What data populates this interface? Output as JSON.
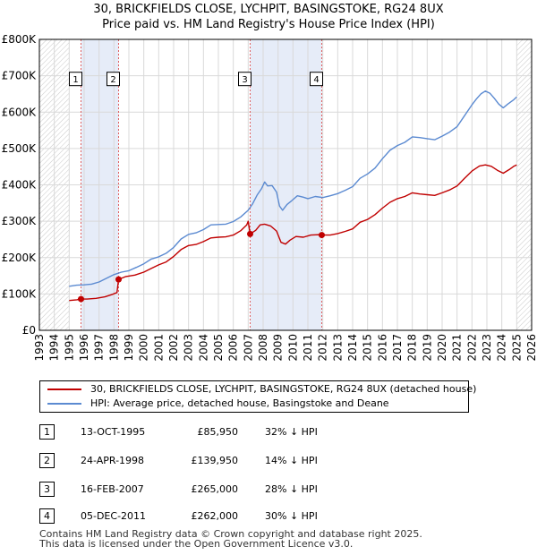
{
  "title_line1": "30, BRICKFIELDS CLOSE, LYCHPIT, BASINGSTOKE, RG24 8UX",
  "title_line2": "Price paid vs. HM Land Registry's House Price Index (HPI)",
  "chart_data": {
    "type": "line",
    "xlim": [
      1993,
      2026
    ],
    "ylim": [
      0,
      800000
    ],
    "x_ticks": [
      1993,
      1994,
      1995,
      1996,
      1997,
      1998,
      1999,
      2000,
      2001,
      2002,
      2003,
      2004,
      2005,
      2006,
      2007,
      2008,
      2009,
      2010,
      2011,
      2012,
      2013,
      2014,
      2015,
      2016,
      2017,
      2018,
      2019,
      2020,
      2021,
      2022,
      2023,
      2024,
      2025,
      2026
    ],
    "y_ticks": [
      {
        "value": 0,
        "label": "£0"
      },
      {
        "value": 100000,
        "label": "£100K"
      },
      {
        "value": 200000,
        "label": "£200K"
      },
      {
        "value": 300000,
        "label": "£300K"
      },
      {
        "value": 400000,
        "label": "£400K"
      },
      {
        "value": 500000,
        "label": "£500K"
      },
      {
        "value": 600000,
        "label": "£600K"
      },
      {
        "value": 700000,
        "label": "£700K"
      },
      {
        "value": 800000,
        "label": "£800K"
      }
    ],
    "grid": true,
    "shaded_ranges": [
      [
        1995.79,
        1998.31
      ],
      [
        2007.13,
        2011.93
      ]
    ],
    "hatched_ranges": [
      [
        1993,
        1995
      ],
      [
        2025,
        2026
      ]
    ],
    "series": [
      {
        "name": "HPI: Average price, detached house, Basingstoke and Deane",
        "color": "#5b8ad1",
        "points": [
          [
            1995.0,
            121000
          ],
          [
            1995.5,
            124000
          ],
          [
            1996.0,
            125000
          ],
          [
            1996.5,
            127000
          ],
          [
            1997.0,
            133000
          ],
          [
            1997.5,
            143000
          ],
          [
            1998.0,
            153000
          ],
          [
            1998.5,
            160000
          ],
          [
            1999.0,
            164000
          ],
          [
            1999.5,
            173000
          ],
          [
            2000.0,
            183000
          ],
          [
            2000.5,
            196000
          ],
          [
            2001.0,
            202000
          ],
          [
            2001.5,
            212000
          ],
          [
            2002.0,
            228000
          ],
          [
            2002.5,
            251000
          ],
          [
            2003.0,
            264000
          ],
          [
            2003.5,
            268000
          ],
          [
            2004.0,
            277000
          ],
          [
            2004.5,
            290000
          ],
          [
            2005.0,
            291000
          ],
          [
            2005.5,
            292000
          ],
          [
            2006.0,
            299000
          ],
          [
            2006.5,
            312000
          ],
          [
            2007.0,
            330000
          ],
          [
            2007.3,
            348000
          ],
          [
            2007.6,
            372000
          ],
          [
            2007.9,
            390000
          ],
          [
            2008.1,
            408000
          ],
          [
            2008.3,
            397000
          ],
          [
            2008.6,
            398000
          ],
          [
            2008.9,
            380000
          ],
          [
            2009.1,
            342000
          ],
          [
            2009.3,
            330000
          ],
          [
            2009.6,
            346000
          ],
          [
            2009.9,
            356000
          ],
          [
            2010.3,
            370000
          ],
          [
            2010.7,
            366000
          ],
          [
            2011.0,
            362000
          ],
          [
            2011.5,
            368000
          ],
          [
            2012.0,
            365000
          ],
          [
            2012.5,
            370000
          ],
          [
            2013.0,
            376000
          ],
          [
            2013.5,
            385000
          ],
          [
            2014.0,
            395000
          ],
          [
            2014.5,
            418000
          ],
          [
            2015.0,
            430000
          ],
          [
            2015.5,
            446000
          ],
          [
            2016.0,
            472000
          ],
          [
            2016.5,
            495000
          ],
          [
            2017.0,
            508000
          ],
          [
            2017.5,
            517000
          ],
          [
            2018.0,
            532000
          ],
          [
            2018.5,
            530000
          ],
          [
            2019.0,
            527000
          ],
          [
            2019.5,
            524000
          ],
          [
            2020.0,
            534000
          ],
          [
            2020.5,
            545000
          ],
          [
            2021.0,
            560000
          ],
          [
            2021.5,
            590000
          ],
          [
            2022.0,
            620000
          ],
          [
            2022.3,
            636000
          ],
          [
            2022.6,
            650000
          ],
          [
            2022.9,
            658000
          ],
          [
            2023.2,
            652000
          ],
          [
            2023.5,
            638000
          ],
          [
            2023.8,
            622000
          ],
          [
            2024.1,
            612000
          ],
          [
            2024.4,
            622000
          ],
          [
            2024.8,
            634000
          ],
          [
            2025.0,
            642000
          ]
        ]
      },
      {
        "name": "30, BRICKFIELDS CLOSE, LYCHPIT, BASINGSTOKE, RG24 8UX (detached house)",
        "color": "#c00000",
        "points": [
          [
            1995.0,
            82000
          ],
          [
            1995.5,
            84000
          ],
          [
            1995.79,
            85950
          ],
          [
            1996.2,
            86000
          ],
          [
            1996.8,
            88000
          ],
          [
            1997.4,
            92000
          ],
          [
            1997.9,
            99000
          ],
          [
            1998.2,
            104000
          ],
          [
            1998.31,
            139950
          ],
          [
            1998.8,
            148000
          ],
          [
            1999.4,
            152000
          ],
          [
            2000.0,
            160000
          ],
          [
            2000.5,
            170000
          ],
          [
            2001.0,
            180000
          ],
          [
            2001.5,
            188000
          ],
          [
            2002.0,
            203000
          ],
          [
            2002.5,
            222000
          ],
          [
            2003.0,
            233000
          ],
          [
            2003.5,
            236000
          ],
          [
            2004.0,
            244000
          ],
          [
            2004.5,
            254000
          ],
          [
            2005.0,
            256000
          ],
          [
            2005.5,
            257000
          ],
          [
            2006.0,
            262000
          ],
          [
            2006.5,
            274000
          ],
          [
            2006.9,
            290000
          ],
          [
            2007.0,
            300000
          ],
          [
            2007.13,
            265000
          ],
          [
            2007.5,
            275000
          ],
          [
            2007.8,
            290000
          ],
          [
            2008.1,
            292000
          ],
          [
            2008.5,
            287000
          ],
          [
            2008.9,
            273000
          ],
          [
            2009.2,
            242000
          ],
          [
            2009.5,
            237000
          ],
          [
            2009.8,
            248000
          ],
          [
            2010.2,
            258000
          ],
          [
            2010.7,
            256000
          ],
          [
            2011.2,
            262000
          ],
          [
            2011.7,
            263000
          ],
          [
            2011.93,
            262000
          ],
          [
            2012.5,
            262000
          ],
          [
            2013.0,
            266000
          ],
          [
            2013.5,
            272000
          ],
          [
            2014.0,
            279000
          ],
          [
            2014.5,
            297000
          ],
          [
            2015.0,
            305000
          ],
          [
            2015.5,
            318000
          ],
          [
            2016.0,
            336000
          ],
          [
            2016.5,
            352000
          ],
          [
            2017.0,
            362000
          ],
          [
            2017.5,
            368000
          ],
          [
            2018.0,
            378000
          ],
          [
            2018.5,
            375000
          ],
          [
            2019.0,
            373000
          ],
          [
            2019.5,
            371000
          ],
          [
            2020.0,
            378000
          ],
          [
            2020.5,
            386000
          ],
          [
            2021.0,
            397000
          ],
          [
            2021.5,
            418000
          ],
          [
            2022.0,
            438000
          ],
          [
            2022.5,
            452000
          ],
          [
            2022.9,
            455000
          ],
          [
            2023.3,
            451000
          ],
          [
            2023.7,
            440000
          ],
          [
            2024.1,
            432000
          ],
          [
            2024.5,
            442000
          ],
          [
            2024.8,
            451000
          ],
          [
            2025.0,
            455000
          ]
        ]
      }
    ],
    "sales": [
      {
        "label": "1",
        "x": 1995.79,
        "y": 85950
      },
      {
        "label": "2",
        "x": 1998.31,
        "y": 139950
      },
      {
        "label": "3",
        "x": 2007.13,
        "y": 265000
      },
      {
        "label": "4",
        "x": 2011.93,
        "y": 262000
      }
    ],
    "marker_label_y": 690000
  },
  "legend": {
    "property_label": "30, BRICKFIELDS CLOSE, LYCHPIT, BASINGSTOKE, RG24 8UX (detached house)",
    "hpi_label": "HPI: Average price, detached house, Basingstoke and Deane",
    "property_color": "#c00000",
    "hpi_color": "#5b8ad1"
  },
  "table": [
    {
      "num": "1",
      "date": "13-OCT-1995",
      "price": "£85,950",
      "hpi": "32% ↓ HPI"
    },
    {
      "num": "2",
      "date": "24-APR-1998",
      "price": "£139,950",
      "hpi": "14% ↓ HPI"
    },
    {
      "num": "3",
      "date": "16-FEB-2007",
      "price": "£265,000",
      "hpi": "28% ↓ HPI"
    },
    {
      "num": "4",
      "date": "05-DEC-2011",
      "price": "£262,000",
      "hpi": "30% ↓ HPI"
    }
  ],
  "footer_line1": "Contains HM Land Registry data © Crown copyright and database right 2025.",
  "footer_line2": "This data is licensed under the Open Government Licence v3.0."
}
